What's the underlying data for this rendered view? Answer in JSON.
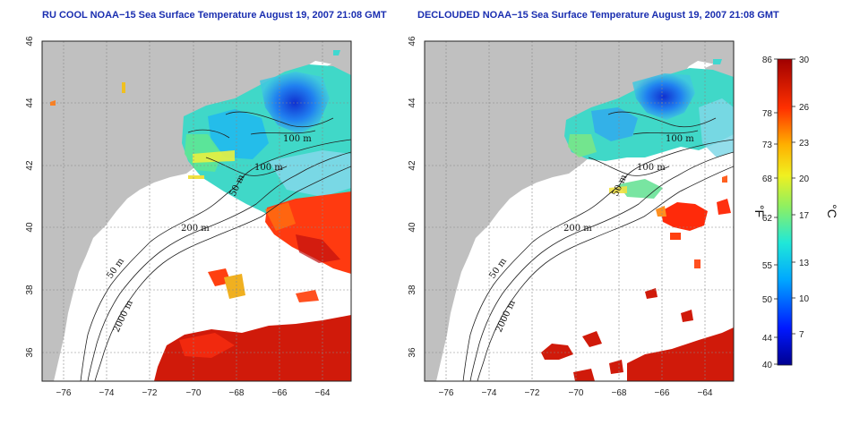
{
  "titles": {
    "left": "RU COOL NOAA−15 Sea Surface Temperature August 19, 2007 21:08 GMT",
    "right": "DECLOUDED NOAA−15 Sea Surface Temperature August 19, 2007 21:08 GMT"
  },
  "axes": {
    "x_ticks": [
      "−76",
      "−74",
      "−72",
      "−70",
      "−68",
      "−66",
      "−64"
    ],
    "y_ticks": [
      "36",
      "38",
      "40",
      "42",
      "44",
      "46"
    ]
  },
  "contour_labels": {
    "left": [
      "100 m",
      "100 m",
      "50 m",
      "200 m",
      "50 m",
      "2000 m"
    ],
    "right": [
      "100 m",
      "100 m",
      "50 m",
      "200 m",
      "50 m",
      "2000 m"
    ]
  },
  "colorbar": {
    "fahrenheit_label": "°F",
    "celsius_label": "°C",
    "fahrenheit_ticks": [
      "86",
      "78",
      "73",
      "68",
      "62",
      "55",
      "50",
      "44",
      "40"
    ],
    "celsius_ticks": [
      "30",
      "26",
      "23",
      "20",
      "17",
      "13",
      "10",
      "7"
    ]
  },
  "colors": {
    "land": "#c0c0c0",
    "water": "#ffffff",
    "title": "#1a2eb0"
  }
}
